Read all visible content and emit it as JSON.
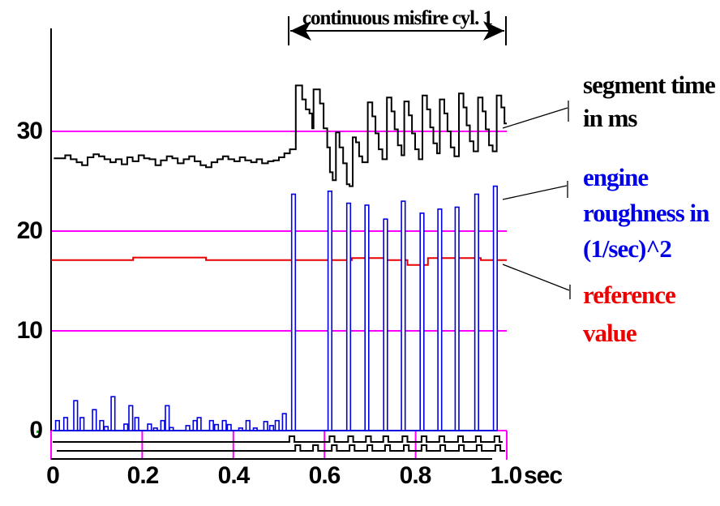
{
  "colors": {
    "bars_blue": "#0000E0",
    "trace_black": "#000000",
    "reference_red": "#E80000",
    "grid_magenta": "#FF00FF",
    "label_blue": "#0000E8",
    "label_red": "#EE0000",
    "green_marker": "#00AA00"
  },
  "annotation": {
    "text": "continuous misfire cyl. 1"
  },
  "axis": {
    "x_tick_labels": [
      "0",
      "0.2",
      "0.4",
      "0.6",
      "0.8",
      "1.0"
    ],
    "x_unit": "sec",
    "y_tick_labels": [
      "0",
      "10",
      "20",
      "30"
    ]
  },
  "right_labels": {
    "segment_time": {
      "lines": [
        "segment time",
        "in ms"
      ],
      "color": "#000000"
    },
    "engine_roughness": {
      "lines": [
        "engine",
        "roughness in",
        "(1/sec)^2"
      ],
      "color": "#0000E8"
    },
    "reference_value": {
      "lines": [
        "reference",
        "value"
      ],
      "color": "#EE0000"
    }
  },
  "chart_data": {
    "type": "combo",
    "title": "",
    "xlabel": "sec",
    "ylabel": "",
    "xlim": [
      0,
      1.0
    ],
    "ylim": [
      0,
      36
    ],
    "x_ticks": [
      0,
      0.2,
      0.4,
      0.6,
      0.8,
      1.0
    ],
    "y_ticks": [
      0,
      10,
      20,
      30
    ],
    "grid": "horizontal magenta lines at y=0,10,20,30",
    "annotation_span": {
      "text": "continuous misfire cyl. 1",
      "from_t": 0.52,
      "to_t": 1.0
    },
    "series": [
      {
        "name": "segment time in ms",
        "type": "step-line",
        "color": "#000000",
        "points": [
          [
            0.006,
            27.3
          ],
          [
            0.018,
            27.3
          ],
          [
            0.031,
            27.6
          ],
          [
            0.043,
            27.2
          ],
          [
            0.056,
            26.9
          ],
          [
            0.068,
            26.6
          ],
          [
            0.08,
            27.4
          ],
          [
            0.093,
            27.7
          ],
          [
            0.105,
            27.5
          ],
          [
            0.117,
            27.2
          ],
          [
            0.13,
            26.9
          ],
          [
            0.142,
            27.2
          ],
          [
            0.155,
            26.7
          ],
          [
            0.167,
            27.4
          ],
          [
            0.179,
            27.0
          ],
          [
            0.192,
            27.6
          ],
          [
            0.204,
            27.3
          ],
          [
            0.216,
            27.2
          ],
          [
            0.229,
            26.6
          ],
          [
            0.241,
            27.1
          ],
          [
            0.254,
            27.5
          ],
          [
            0.266,
            27.3
          ],
          [
            0.278,
            26.8
          ],
          [
            0.291,
            27.2
          ],
          [
            0.303,
            27.5
          ],
          [
            0.315,
            27.0
          ],
          [
            0.328,
            26.6
          ],
          [
            0.34,
            26.4
          ],
          [
            0.352,
            26.9
          ],
          [
            0.365,
            27.2
          ],
          [
            0.377,
            27.5
          ],
          [
            0.389,
            27.2
          ],
          [
            0.402,
            27.0
          ],
          [
            0.414,
            27.4
          ],
          [
            0.426,
            27.1
          ],
          [
            0.439,
            26.9
          ],
          [
            0.451,
            27.2
          ],
          [
            0.463,
            26.8
          ],
          [
            0.476,
            27.0
          ],
          [
            0.488,
            27.1
          ],
          [
            0.5,
            27.4
          ],
          [
            0.512,
            27.8
          ],
          [
            0.524,
            28.2
          ],
          [
            0.537,
            34.6
          ],
          [
            0.551,
            33.2
          ],
          [
            0.559,
            32.2
          ],
          [
            0.567,
            31.8
          ],
          [
            0.573,
            30.3
          ],
          [
            0.576,
            34.2
          ],
          [
            0.59,
            32.8
          ],
          [
            0.598,
            30.3
          ],
          [
            0.606,
            28.4
          ],
          [
            0.612,
            25.9
          ],
          [
            0.618,
            25.1
          ],
          [
            0.625,
            29.9
          ],
          [
            0.633,
            28.4
          ],
          [
            0.641,
            26.8
          ],
          [
            0.649,
            24.7
          ],
          [
            0.655,
            24.5
          ],
          [
            0.662,
            29.4
          ],
          [
            0.669,
            28.9
          ],
          [
            0.676,
            27.5
          ],
          [
            0.683,
            26.9
          ],
          [
            0.695,
            32.9
          ],
          [
            0.705,
            31.5
          ],
          [
            0.712,
            29.8
          ],
          [
            0.719,
            28.2
          ],
          [
            0.727,
            27.2
          ],
          [
            0.737,
            33.4
          ],
          [
            0.747,
            32.0
          ],
          [
            0.754,
            30.2
          ],
          [
            0.761,
            28.6
          ],
          [
            0.769,
            27.6
          ],
          [
            0.775,
            33.0
          ],
          [
            0.785,
            31.6
          ],
          [
            0.792,
            29.8
          ],
          [
            0.799,
            28.2
          ],
          [
            0.807,
            27.2
          ],
          [
            0.815,
            33.6
          ],
          [
            0.825,
            32.2
          ],
          [
            0.832,
            30.4
          ],
          [
            0.839,
            28.8
          ],
          [
            0.847,
            27.8
          ],
          [
            0.853,
            33.2
          ],
          [
            0.863,
            31.8
          ],
          [
            0.87,
            30.0
          ],
          [
            0.877,
            28.4
          ],
          [
            0.885,
            27.5
          ],
          [
            0.895,
            33.8
          ],
          [
            0.905,
            32.4
          ],
          [
            0.912,
            30.6
          ],
          [
            0.919,
            29.0
          ],
          [
            0.927,
            28.0
          ],
          [
            0.937,
            33.4
          ],
          [
            0.947,
            32.0
          ],
          [
            0.954,
            30.2
          ],
          [
            0.961,
            28.6
          ],
          [
            0.969,
            28.0
          ],
          [
            0.978,
            33.6
          ],
          [
            0.988,
            32.4
          ],
          [
            0.995,
            30.8
          ]
        ]
      },
      {
        "name": "engine roughness in (1/sec)^2",
        "type": "bar",
        "color": "#0000E0",
        "bars": [
          [
            0.014,
            1.0
          ],
          [
            0.032,
            1.3
          ],
          [
            0.054,
            3.0
          ],
          [
            0.068,
            1.3
          ],
          [
            0.095,
            2.1
          ],
          [
            0.111,
            1.0
          ],
          [
            0.121,
            0.4
          ],
          [
            0.136,
            3.4
          ],
          [
            0.164,
            0.65
          ],
          [
            0.175,
            2.5
          ],
          [
            0.188,
            1.3
          ],
          [
            0.216,
            0.65
          ],
          [
            0.229,
            0.25
          ],
          [
            0.245,
            1.0
          ],
          [
            0.255,
            2.5
          ],
          [
            0.264,
            0.3
          ],
          [
            0.3,
            0.5
          ],
          [
            0.316,
            1.0
          ],
          [
            0.325,
            1.3
          ],
          [
            0.352,
            1.0
          ],
          [
            0.363,
            0.6
          ],
          [
            0.38,
            1.0
          ],
          [
            0.391,
            0.6
          ],
          [
            0.416,
            0.25
          ],
          [
            0.432,
            1.0
          ],
          [
            0.448,
            0.25
          ],
          [
            0.471,
            0.9
          ],
          [
            0.484,
            0.5
          ],
          [
            0.496,
            1.0
          ],
          [
            0.512,
            1.7
          ],
          [
            0.532,
            23.7
          ],
          [
            0.612,
            24.0
          ],
          [
            0.653,
            22.8
          ],
          [
            0.693,
            22.6
          ],
          [
            0.734,
            21.2
          ],
          [
            0.773,
            23.0
          ],
          [
            0.814,
            21.8
          ],
          [
            0.853,
            22.2
          ],
          [
            0.891,
            22.4
          ],
          [
            0.934,
            23.7
          ],
          [
            0.975,
            24.5
          ]
        ]
      },
      {
        "name": "reference value",
        "type": "step-line",
        "color": "#E80000",
        "points": [
          [
            0.0,
            17.1
          ],
          [
            0.18,
            17.35
          ],
          [
            0.34,
            17.1
          ],
          [
            0.66,
            17.3
          ],
          [
            0.737,
            17.1
          ],
          [
            0.782,
            16.6
          ],
          [
            0.827,
            17.3
          ],
          [
            0.943,
            17.1
          ],
          [
            1.0,
            17.1
          ]
        ]
      }
    ],
    "digital_traces": {
      "row1_pulse_times": [
        0.523,
        0.611,
        0.652,
        0.691,
        0.729,
        0.771,
        0.813,
        0.852,
        0.893,
        0.932,
        0.973
      ],
      "row2_pulse_times": [
        0.536,
        0.575,
        0.616,
        0.655,
        0.694,
        0.733,
        0.774,
        0.813,
        0.854,
        0.895,
        0.934,
        0.975
      ],
      "pulse_width_t": 0.011
    }
  }
}
